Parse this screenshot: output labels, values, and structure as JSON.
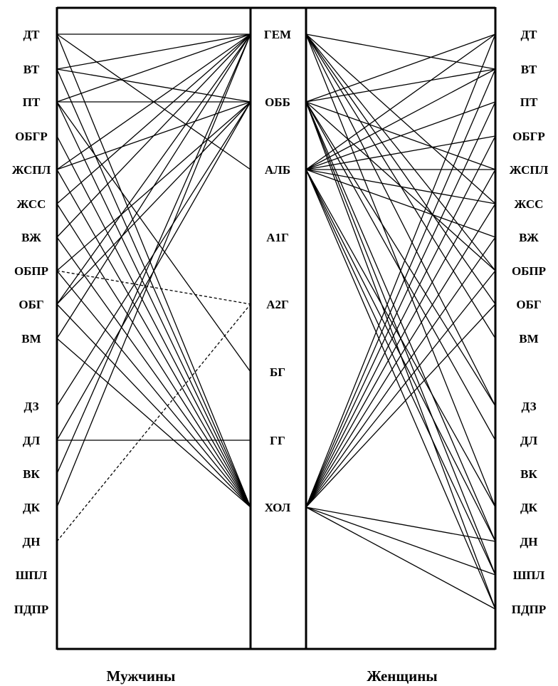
{
  "left_labels": [
    "ДТ",
    "ВТ",
    "ПТ",
    "ОБГР",
    "ЖСПЛ",
    "ЖСС",
    "ВЖ",
    "ОБПР",
    "ОБГ",
    "ВМ",
    "ДЗ",
    "ДЛ",
    "ВК",
    "ДК",
    "ДН",
    "ШПЛ",
    "ПДПР"
  ],
  "center_labels": [
    "ГЕМ",
    "ОББ",
    "АЛБ",
    "А1Г",
    "А2Г",
    "БГ",
    "ГГ",
    "ХОЛ"
  ],
  "right_labels": [
    "ДТ",
    "ВТ",
    "ПТ",
    "ОБГР",
    "ЖСПЛ",
    "ЖСС",
    "ВЖ",
    "ОБПР",
    "ОБГ",
    "ВМ",
    "ДЗ",
    "ДЛ",
    "ВК",
    "ДК",
    "ДН",
    "ШПЛ",
    "ПДПР"
  ],
  "captions": {
    "men": "Мужчины",
    "women": "Женщины"
  },
  "men_links": [
    {
      "from": "ДТ",
      "to": "ГЕМ"
    },
    {
      "from": "ДТ",
      "to": "ХОЛ"
    },
    {
      "from": "ДТ",
      "to": "АЛБ"
    },
    {
      "from": "ВТ",
      "to": "ГЕМ"
    },
    {
      "from": "ВТ",
      "to": "ОББ"
    },
    {
      "from": "ВТ",
      "to": "ХОЛ"
    },
    {
      "from": "ПТ",
      "to": "ГЕМ"
    },
    {
      "from": "ПТ",
      "to": "ОББ"
    },
    {
      "from": "ПТ",
      "to": "ХОЛ"
    },
    {
      "from": "ПТ",
      "to": "БГ"
    },
    {
      "from": "ОБГР",
      "to": "ХОЛ"
    },
    {
      "from": "ЖСПЛ",
      "to": "ГЕМ"
    },
    {
      "from": "ЖСПЛ",
      "to": "ОББ"
    },
    {
      "from": "ЖСПЛ",
      "to": "ХОЛ"
    },
    {
      "from": "ЖСС",
      "to": "ГЕМ"
    },
    {
      "from": "ЖСС",
      "to": "ХОЛ"
    },
    {
      "from": "ВЖ",
      "to": "ГЕМ"
    },
    {
      "from": "ВЖ",
      "to": "ХОЛ"
    },
    {
      "from": "ОБПР",
      "to": "А2Г",
      "style": "dashed"
    },
    {
      "from": "ОБПР",
      "to": "ОББ"
    },
    {
      "from": "ОБПР",
      "to": "ХОЛ"
    },
    {
      "from": "ОБГ",
      "to": "ГЕМ"
    },
    {
      "from": "ОБГ",
      "to": "ОББ"
    },
    {
      "from": "ОБГ",
      "to": "ХОЛ"
    },
    {
      "from": "ВМ",
      "to": "ГЕМ"
    },
    {
      "from": "ВМ",
      "to": "ХОЛ"
    },
    {
      "from": "ДЗ",
      "to": "ОББ"
    },
    {
      "from": "ДЛ",
      "to": "ГГ"
    },
    {
      "from": "ДЛ",
      "to": "ОББ"
    },
    {
      "from": "ВК",
      "to": "ГЕМ"
    },
    {
      "from": "ДК",
      "to": "ГЕМ"
    },
    {
      "from": "ДН",
      "to": "А2Г",
      "style": "dashed"
    }
  ],
  "women_links": [
    {
      "from": "ГЕМ",
      "to": "ВТ"
    },
    {
      "from": "ГЕМ",
      "to": "ЖСС"
    },
    {
      "from": "ГЕМ",
      "to": "ОБПР"
    },
    {
      "from": "ГЕМ",
      "to": "ОБГ"
    },
    {
      "from": "ГЕМ",
      "to": "ВМ"
    },
    {
      "from": "ГЕМ",
      "to": "ДЗ"
    },
    {
      "from": "ГЕМ",
      "to": "ДК"
    },
    {
      "from": "ОББ",
      "to": "ДТ"
    },
    {
      "from": "ОББ",
      "to": "ВТ"
    },
    {
      "from": "ОББ",
      "to": "ЖСПЛ"
    },
    {
      "from": "ОББ",
      "to": "ОБПР"
    },
    {
      "from": "ОББ",
      "to": "ДЗ"
    },
    {
      "from": "ОББ",
      "to": "ДЛ"
    },
    {
      "from": "ОББ",
      "to": "ДН"
    },
    {
      "from": "ОББ",
      "to": "ШПЛ"
    },
    {
      "from": "ОББ",
      "to": "ПДПР"
    },
    {
      "from": "АЛБ",
      "to": "ДТ"
    },
    {
      "from": "АЛБ",
      "to": "ВТ"
    },
    {
      "from": "АЛБ",
      "to": "ПТ"
    },
    {
      "from": "АЛБ",
      "to": "ОБГР"
    },
    {
      "from": "АЛБ",
      "to": "ЖСПЛ"
    },
    {
      "from": "АЛБ",
      "to": "ЖСС"
    },
    {
      "from": "АЛБ",
      "to": "ВЖ"
    },
    {
      "from": "АЛБ",
      "to": "ДК"
    },
    {
      "from": "АЛБ",
      "to": "ДН"
    },
    {
      "from": "АЛБ",
      "to": "ШПЛ"
    },
    {
      "from": "АЛБ",
      "to": "ПДПР"
    },
    {
      "from": "ХОЛ",
      "to": "ДТ"
    },
    {
      "from": "ХОЛ",
      "to": "ВТ"
    },
    {
      "from": "ХОЛ",
      "to": "ПТ"
    },
    {
      "from": "ХОЛ",
      "to": "ОБГР"
    },
    {
      "from": "ХОЛ",
      "to": "ЖСПЛ"
    },
    {
      "from": "ХОЛ",
      "to": "ЖСС"
    },
    {
      "from": "ХОЛ",
      "to": "ВЖ"
    },
    {
      "from": "ХОЛ",
      "to": "ОБПР"
    },
    {
      "from": "ХОЛ",
      "to": "ОБГ"
    },
    {
      "from": "ХОЛ",
      "to": "ДН"
    },
    {
      "from": "ХОЛ",
      "to": "ШПЛ"
    },
    {
      "from": "ХОЛ",
      "to": "ПДПР"
    }
  ]
}
